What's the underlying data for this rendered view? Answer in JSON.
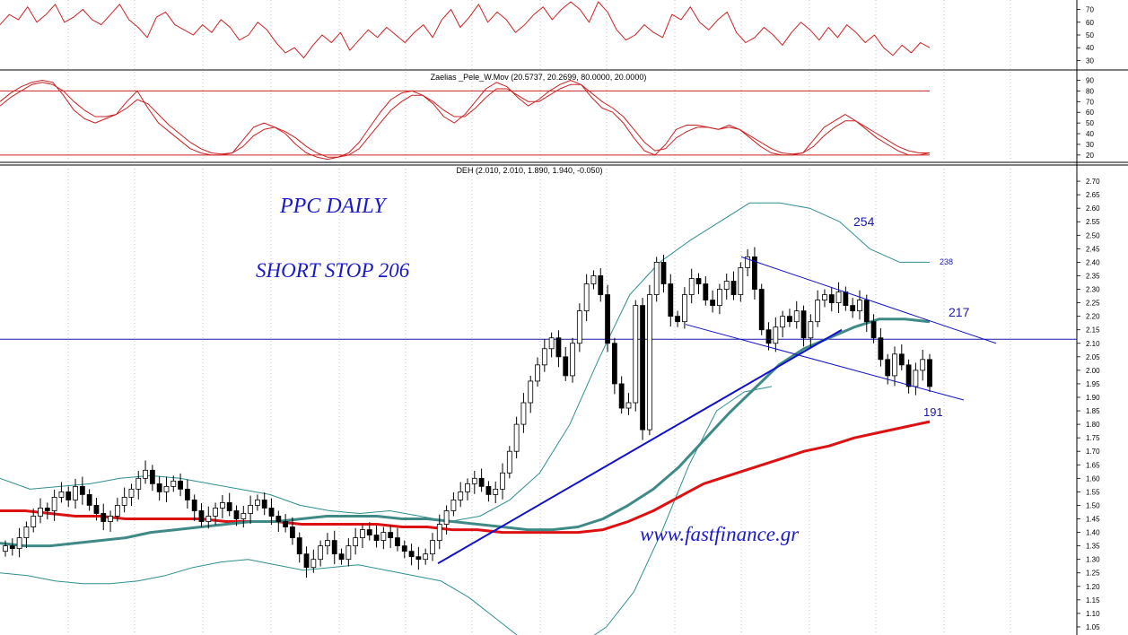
{
  "chart_data": [
    {
      "type": "line",
      "panel": "top-oscillator",
      "title": "",
      "ylim": [
        24,
        76
      ],
      "yticks": [
        30,
        40,
        50,
        60,
        70
      ],
      "series": [
        {
          "values": [
            58,
            66,
            62,
            72,
            60,
            66,
            74,
            60,
            64,
            70,
            62,
            58,
            66,
            74,
            62,
            56,
            48,
            64,
            68,
            58,
            54,
            50,
            58,
            52,
            62,
            56,
            46,
            50,
            60,
            54,
            44,
            36,
            40,
            32,
            42,
            50,
            44,
            52,
            38,
            46,
            54,
            48,
            56,
            50,
            44,
            52,
            58,
            48,
            62,
            70,
            56,
            64,
            74,
            60,
            68,
            62,
            52,
            58,
            66,
            72,
            62,
            70,
            76,
            70,
            60,
            76,
            68,
            54,
            46,
            50,
            58,
            52,
            48,
            66,
            62,
            72,
            60,
            54,
            62,
            68,
            52,
            44,
            48,
            56,
            50,
            42,
            52,
            60,
            54,
            46,
            56,
            48,
            58,
            52,
            44,
            50,
            40,
            34,
            42,
            36,
            44,
            40
          ]
        }
      ],
      "color": "#cc2222"
    },
    {
      "type": "line",
      "panel": "stochastic",
      "title": "Zaelias _Pele_W.Mov (20.5737, 20.2699, 80.0000, 20.0000)",
      "ylim": [
        14,
        98
      ],
      "yticks": [
        20,
        30,
        40,
        50,
        60,
        70,
        80,
        90
      ],
      "levels": [
        80,
        20
      ],
      "series": [
        {
          "values": [
            70,
            78,
            84,
            88,
            90,
            88,
            76,
            62,
            54,
            50,
            54,
            58,
            70,
            80,
            64,
            50,
            42,
            34,
            26,
            22,
            20,
            20,
            22,
            34,
            46,
            50,
            46,
            40,
            30,
            22,
            18,
            16,
            18,
            22,
            32,
            46,
            60,
            72,
            78,
            80,
            76,
            68,
            56,
            50,
            58,
            70,
            82,
            88,
            84,
            74,
            66,
            72,
            80,
            86,
            90,
            86,
            74,
            64,
            60,
            50,
            36,
            24,
            20,
            30,
            44,
            48,
            48,
            46,
            44,
            48,
            44,
            36,
            28,
            22,
            20,
            20,
            22,
            34,
            46,
            52,
            58,
            52,
            44,
            36,
            30,
            24,
            20,
            20,
            22
          ]
        },
        {
          "values": [
            66,
            74,
            80,
            86,
            88,
            86,
            80,
            70,
            62,
            56,
            56,
            58,
            64,
            72,
            68,
            58,
            48,
            40,
            32,
            26,
            22,
            21,
            22,
            28,
            38,
            44,
            46,
            42,
            36,
            28,
            22,
            18,
            18,
            20,
            26,
            38,
            50,
            62,
            70,
            76,
            76,
            70,
            62,
            56,
            56,
            64,
            74,
            82,
            82,
            76,
            70,
            70,
            76,
            82,
            86,
            86,
            78,
            70,
            64,
            56,
            44,
            32,
            24,
            26,
            36,
            42,
            46,
            46,
            44,
            46,
            44,
            38,
            32,
            26,
            22,
            21,
            22,
            28,
            38,
            46,
            52,
            52,
            46,
            40,
            34,
            28,
            24,
            22,
            22
          ]
        }
      ],
      "color": "#cc2222"
    },
    {
      "type": "candlestick",
      "panel": "price",
      "title": "DEH (2.010, 2.010, 1.890, 1.940, -0.050)",
      "ylim": [
        1.02,
        2.76
      ],
      "yticks": [
        1.05,
        1.1,
        1.15,
        1.2,
        1.25,
        1.3,
        1.35,
        1.4,
        1.45,
        1.5,
        1.55,
        1.6,
        1.65,
        1.7,
        1.75,
        1.8,
        1.85,
        1.9,
        1.95,
        2.0,
        2.05,
        2.1,
        2.15,
        2.2,
        2.25,
        2.3,
        2.35,
        2.4,
        2.45,
        2.5,
        2.55,
        2.6,
        2.65,
        2.7
      ],
      "close": [
        1.35,
        1.34,
        1.38,
        1.42,
        1.46,
        1.49,
        1.48,
        1.53,
        1.55,
        1.52,
        1.57,
        1.54,
        1.5,
        1.47,
        1.44,
        1.46,
        1.5,
        1.53,
        1.56,
        1.6,
        1.63,
        1.58,
        1.55,
        1.57,
        1.59,
        1.56,
        1.52,
        1.48,
        1.44,
        1.46,
        1.49,
        1.51,
        1.48,
        1.45,
        1.47,
        1.5,
        1.52,
        1.49,
        1.46,
        1.44,
        1.42,
        1.38,
        1.32,
        1.27,
        1.3,
        1.35,
        1.37,
        1.32,
        1.3,
        1.35,
        1.38,
        1.41,
        1.39,
        1.37,
        1.4,
        1.38,
        1.35,
        1.33,
        1.31,
        1.3,
        1.32,
        1.37,
        1.43,
        1.48,
        1.52,
        1.55,
        1.58,
        1.6,
        1.57,
        1.54,
        1.56,
        1.62,
        1.7,
        1.8,
        1.88,
        1.96,
        2.02,
        2.08,
        2.12,
        2.05,
        1.98,
        2.1,
        2.22,
        2.32,
        2.35,
        2.28,
        2.1,
        1.95,
        1.86,
        1.88,
        2.24,
        1.78,
        2.28,
        2.4,
        2.32,
        2.2,
        2.18,
        2.28,
        2.34,
        2.32,
        2.26,
        2.24,
        2.3,
        2.33,
        2.28,
        2.38,
        2.42,
        2.3,
        2.15,
        2.1,
        2.16,
        2.2,
        2.18,
        2.22,
        2.12,
        2.18,
        2.26,
        2.28,
        2.25,
        2.29,
        2.24,
        2.22,
        2.26,
        2.18,
        2.12,
        2.04,
        1.98,
        2.06,
        2.02,
        1.94,
        2.0,
        2.04,
        1.94
      ],
      "ma_long": {
        "name": "",
        "values": [
          1.48,
          1.48,
          1.47,
          1.46,
          1.46,
          1.45,
          1.45,
          1.45,
          1.45,
          1.44,
          1.44,
          1.44,
          1.43,
          1.43,
          1.43,
          1.43,
          1.42,
          1.42,
          1.41,
          1.41,
          1.4,
          1.4,
          1.4,
          1.4,
          1.41,
          1.44,
          1.48,
          1.53,
          1.58,
          1.61,
          1.64,
          1.67,
          1.7,
          1.72,
          1.75,
          1.77,
          1.79,
          1.81
        ]
      },
      "ma_short": {
        "name": "",
        "values": [
          1.36,
          1.35,
          1.35,
          1.36,
          1.37,
          1.38,
          1.4,
          1.41,
          1.42,
          1.43,
          1.44,
          1.44,
          1.45,
          1.46,
          1.46,
          1.46,
          1.45,
          1.45,
          1.44,
          1.43,
          1.42,
          1.41,
          1.41,
          1.42,
          1.45,
          1.5,
          1.56,
          1.64,
          1.74,
          1.84,
          1.93,
          2.02,
          2.08,
          2.12,
          2.16,
          2.19,
          2.19,
          2.18
        ]
      },
      "boll_upper": {
        "values": [
          1.6,
          1.56,
          1.57,
          1.58,
          1.6,
          1.61,
          1.6,
          1.58,
          1.56,
          1.54,
          1.5,
          1.48,
          1.47,
          1.48,
          1.46,
          1.44,
          1.46,
          1.52,
          1.62,
          1.8,
          2.05,
          2.28,
          2.4,
          2.48,
          2.55,
          2.62,
          2.62,
          2.6,
          2.55,
          2.45,
          2.4,
          2.4
        ]
      },
      "boll_lower": {
        "values": [
          1.25,
          1.24,
          1.22,
          1.21,
          1.21,
          1.22,
          1.24,
          1.27,
          1.29,
          1.3,
          1.28,
          1.26,
          1.27,
          1.28,
          1.26,
          1.24,
          1.22,
          1.16,
          1.08,
          1.0,
          0.96,
          0.98,
          1.05,
          1.18,
          1.4,
          1.65,
          1.85,
          1.92,
          1.94
        ]
      },
      "annotations": [
        {
          "text": "PPC DAILY"
        },
        {
          "text": "SHORT STOP 206"
        },
        {
          "text": "www.fastfinance.gr"
        },
        {
          "text": "254"
        },
        {
          "text": "238"
        },
        {
          "text": "217"
        },
        {
          "text": "191"
        }
      ],
      "hline": 2.115,
      "colors": {
        "ma_long": "#dd1111",
        "ma_short": "#3f8a86",
        "bands": "#2f8f8f",
        "trend": "#1111cc",
        "hline": "#1a1aaa",
        "up": "#ffffff",
        "down": "#000000"
      }
    }
  ]
}
